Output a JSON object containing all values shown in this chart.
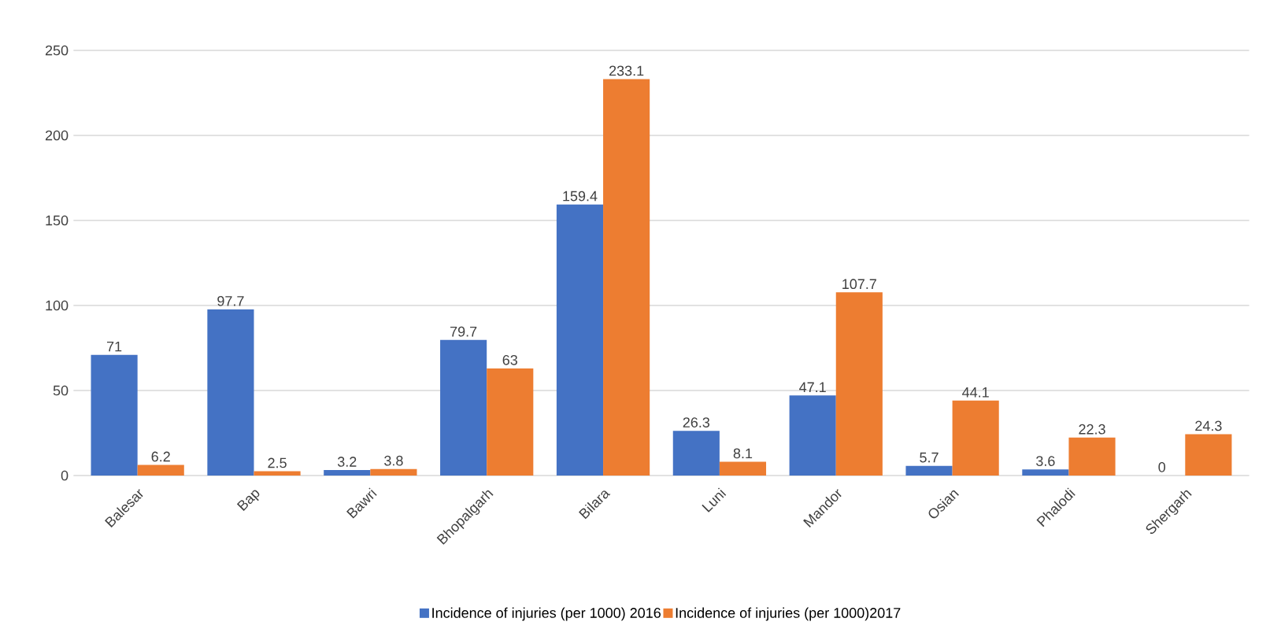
{
  "chart_data": {
    "type": "bar",
    "categories": [
      "Balesar",
      "Bap",
      "Bawri",
      "Bhopalgarh",
      "Bilara",
      "Luni",
      "Mandor",
      "Osian",
      "Phalodi",
      "Shergarh"
    ],
    "series": [
      {
        "name": "Incidence of injuries (per 1000) 2016",
        "color": "#4472c4",
        "values": [
          71,
          97.7,
          3.2,
          79.7,
          159.4,
          26.3,
          47.1,
          5.7,
          3.6,
          0
        ]
      },
      {
        "name": "Incidence of injuries (per 1000)2017",
        "color": "#ed7d31",
        "values": [
          6.2,
          2.5,
          3.8,
          63,
          233.1,
          8.1,
          107.7,
          44.1,
          22.3,
          24.3
        ]
      }
    ],
    "ylim": [
      0,
      250
    ],
    "yticks": [
      0,
      50,
      100,
      150,
      200,
      250
    ],
    "grid": "y",
    "legend": "bottom",
    "data_labels": true
  }
}
